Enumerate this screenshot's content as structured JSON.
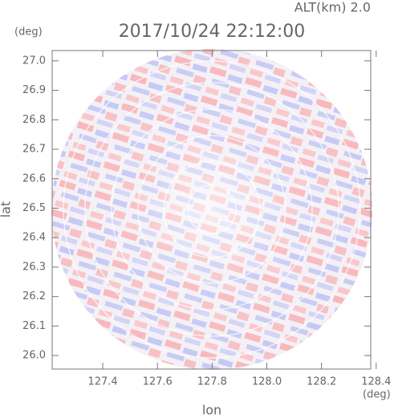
{
  "chart_data": {
    "type": "radar-ppi",
    "title": "2017/10/24 22:12:00",
    "altitude_label": "ALT(km) 2.0",
    "y_unit": "(deg)",
    "x_unit": "(deg)",
    "ylabel": "lat",
    "xlabel": "lon",
    "xlim": [
      127.215,
      128.38
    ],
    "ylim": [
      25.954,
      27.035
    ],
    "xticks": [
      127.4,
      127.6,
      127.8,
      {
        "value": 128.0,
        "label": "128.0"
      },
      128.2,
      128.4
    ],
    "yticks": [
      {
        "value": 26.0,
        "label": "26.0"
      },
      26.1,
      26.2,
      26.3,
      26.4,
      26.5,
      26.6,
      26.7,
      26.8,
      26.9,
      {
        "value": 27.0,
        "label": "27.0"
      }
    ]
  }
}
